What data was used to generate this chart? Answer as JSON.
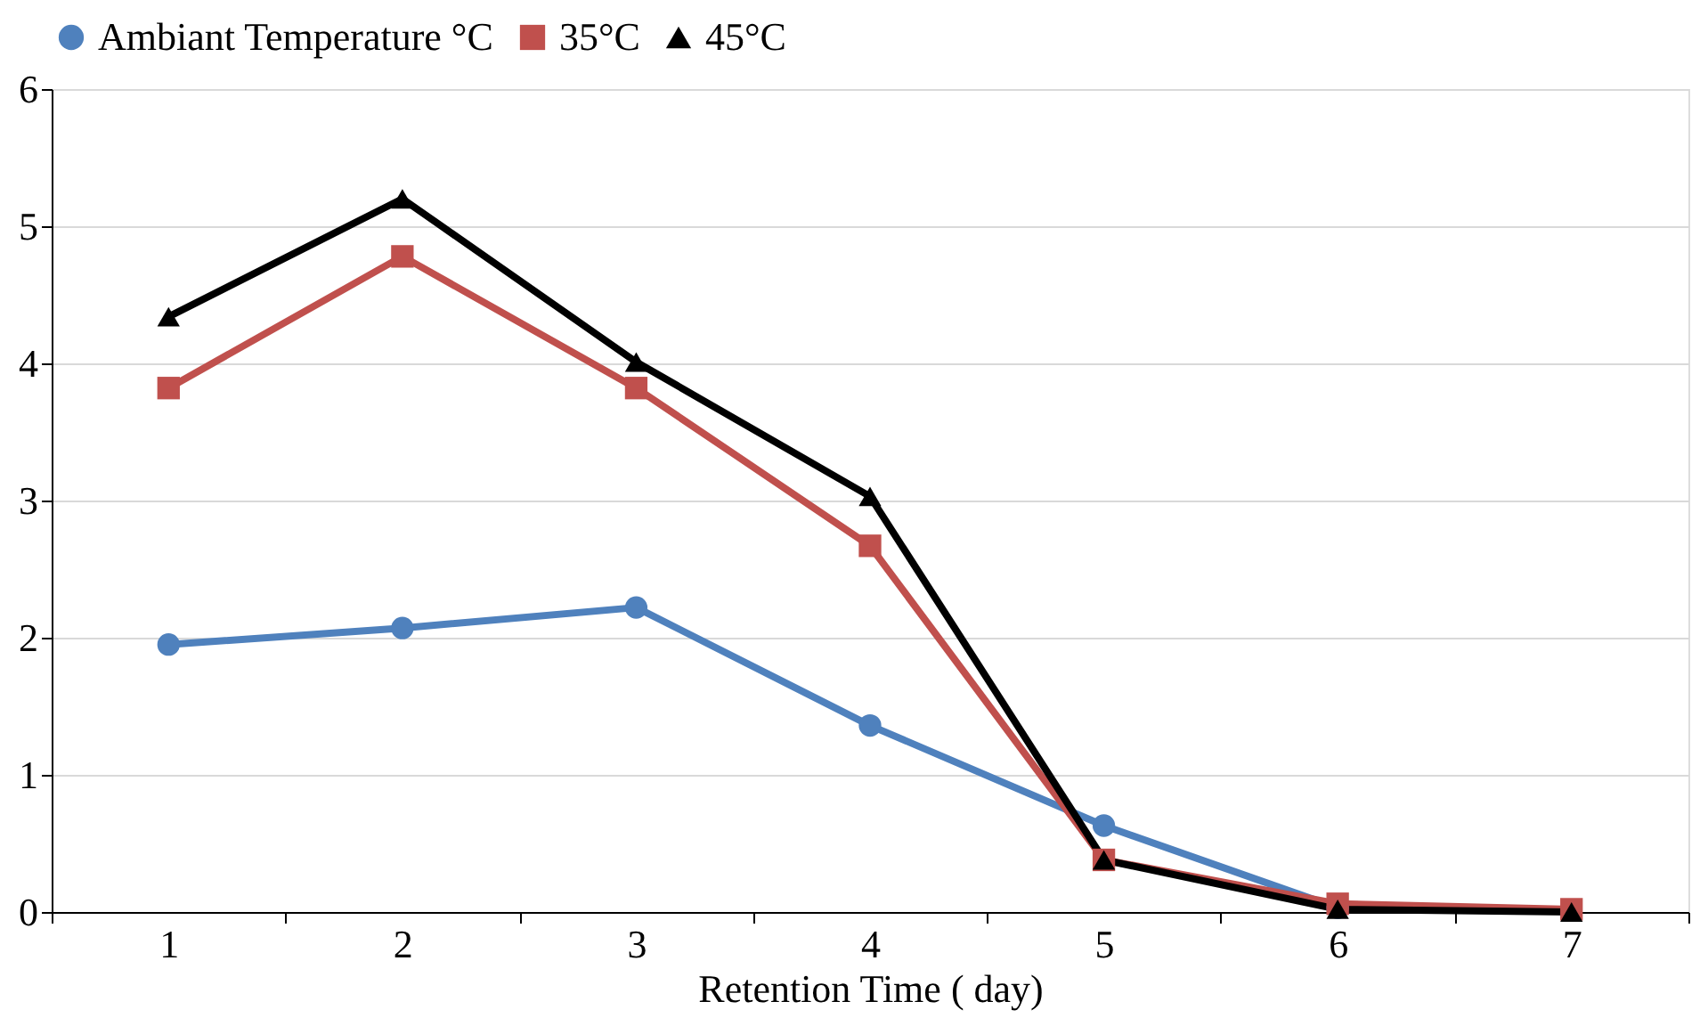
{
  "chart_data": {
    "type": "line",
    "xlabel": "Retention Time ( day)",
    "categories": [
      "1",
      "2",
      "3",
      "4",
      "5",
      "6",
      "7"
    ],
    "series": [
      {
        "name": "Ambiant Temperature °C",
        "color": "#4f81bd",
        "marker": "circle",
        "values": [
          1.95,
          2.07,
          2.22,
          1.36,
          0.63,
          0.03,
          null
        ]
      },
      {
        "name": "35°C",
        "color": "#c0504d",
        "marker": "square",
        "values": [
          3.82,
          4.78,
          3.82,
          2.67,
          0.38,
          0.06,
          0.02
        ]
      },
      {
        "name": "45°C",
        "color": "#000000",
        "marker": "triangle",
        "values": [
          4.34,
          5.2,
          4.01,
          3.03,
          0.38,
          0.02,
          0.0
        ]
      }
    ],
    "ylim": [
      0,
      6
    ],
    "yticks": [
      0,
      1,
      2,
      3,
      4,
      5,
      6
    ],
    "grid": "y",
    "legend": "top",
    "line_style": "solid"
  }
}
